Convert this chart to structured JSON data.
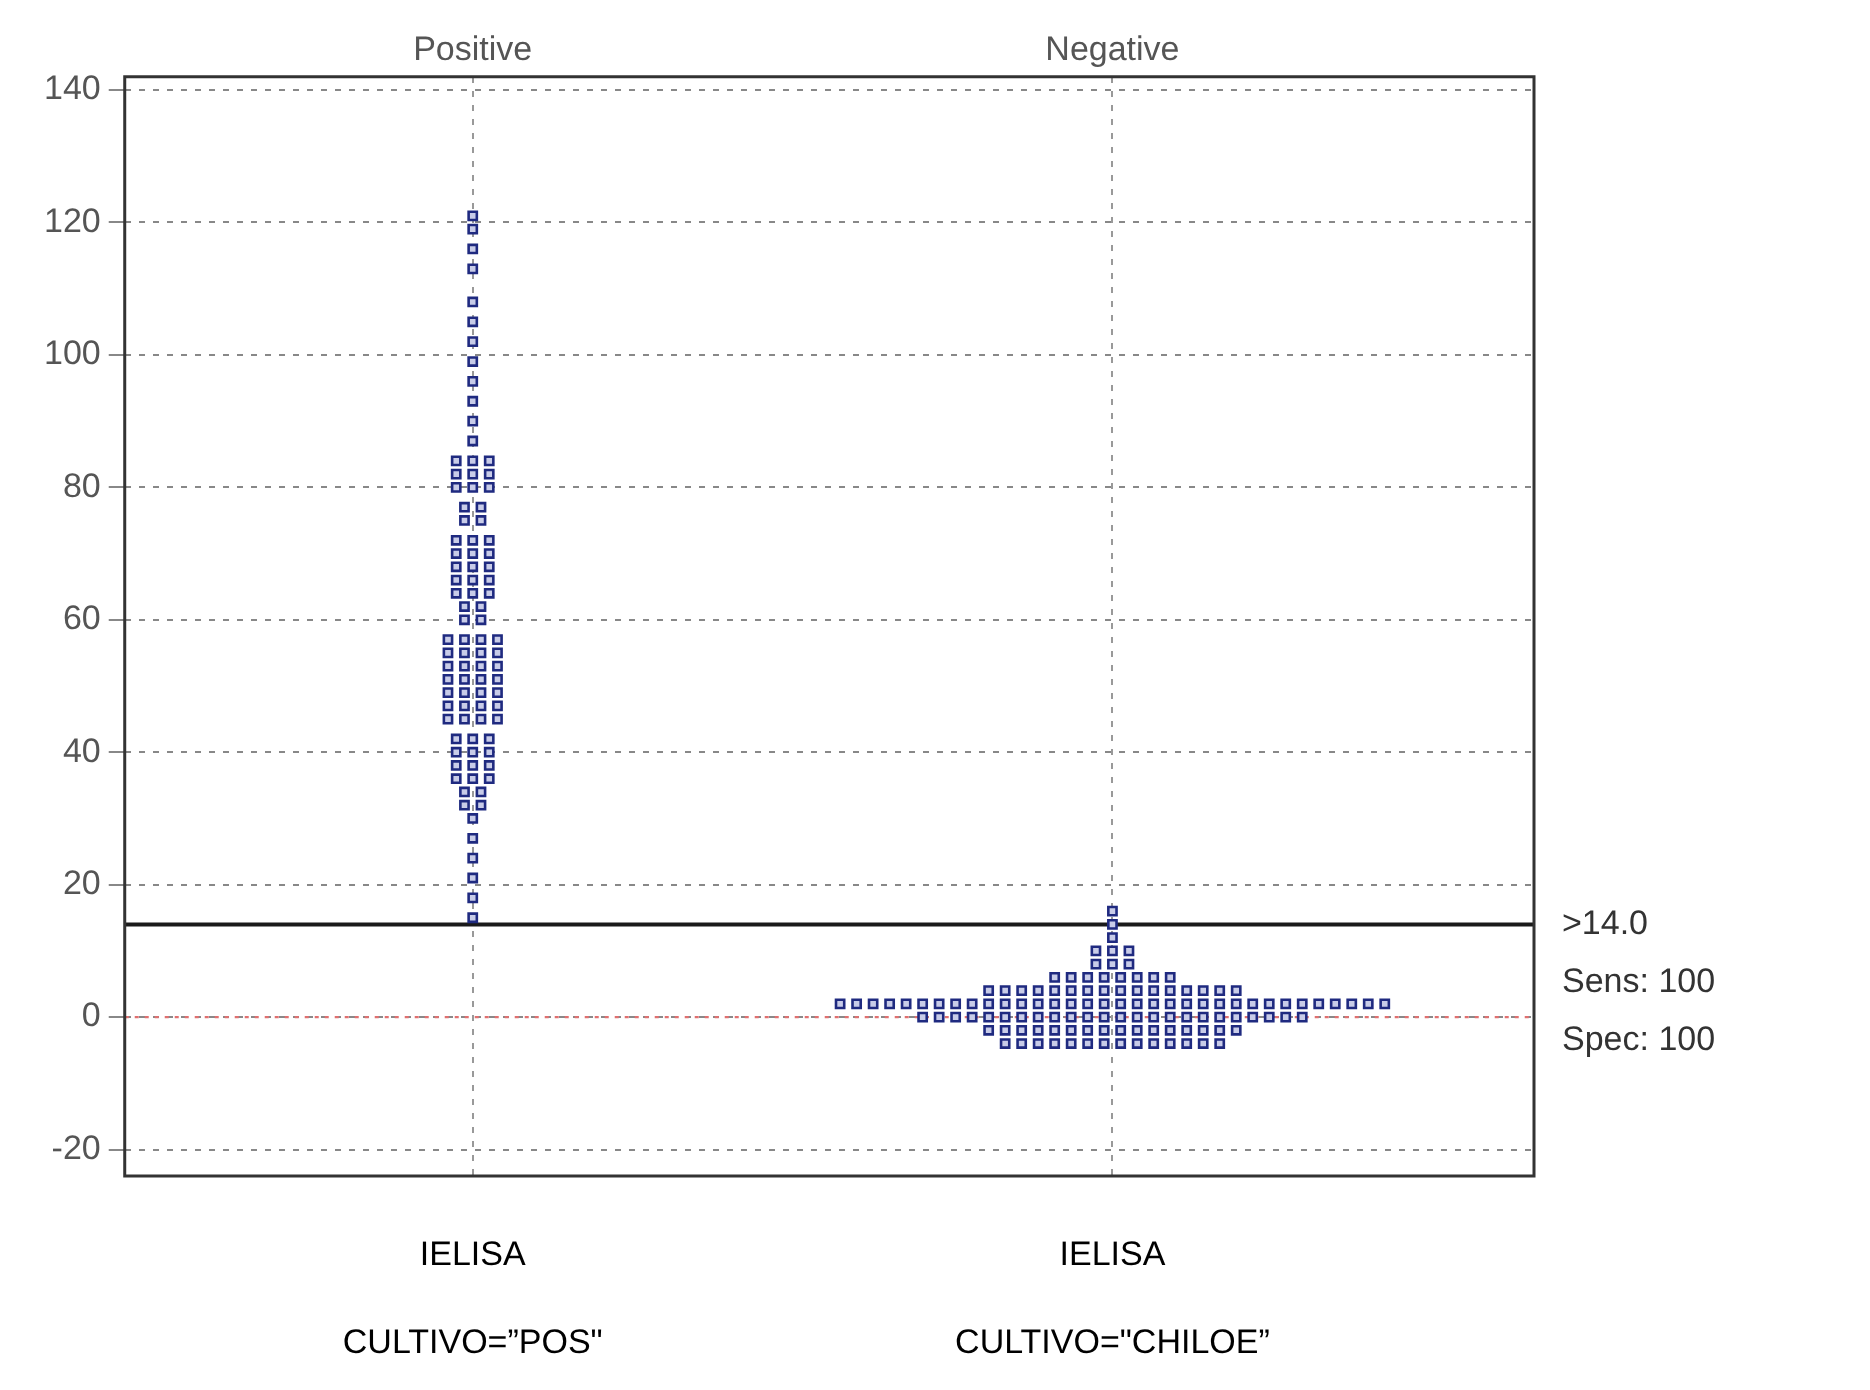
{
  "chart_data": {
    "type": "scatter",
    "categories": [
      "Positive",
      "Negative"
    ],
    "ylim": [
      -24,
      142
    ],
    "yticks": [
      -20,
      0,
      20,
      40,
      60,
      80,
      100,
      120,
      140
    ],
    "grid": true,
    "marker": "square",
    "legend": false,
    "series": [
      {
        "color": "#1f2a80",
        "x": [
          "Positive",
          "Positive",
          "Positive",
          "Positive",
          "Positive",
          "Positive",
          "Positive",
          "Positive",
          "Positive",
          "Positive",
          "Positive",
          "Positive",
          "Positive",
          "Positive",
          "Positive",
          "Positive",
          "Positive",
          "Positive",
          "Positive",
          "Positive",
          "Positive",
          "Positive",
          "Positive",
          "Positive",
          "Positive",
          "Positive",
          "Positive",
          "Positive",
          "Positive",
          "Positive",
          "Positive",
          "Positive",
          "Positive",
          "Positive",
          "Positive",
          "Positive",
          "Positive",
          "Positive",
          "Positive",
          "Positive",
          "Positive",
          "Positive",
          "Positive",
          "Positive",
          "Positive",
          "Positive",
          "Positive",
          "Positive",
          "Positive",
          "Positive",
          "Positive",
          "Positive",
          "Positive",
          "Positive",
          "Positive",
          "Positive",
          "Positive",
          "Positive",
          "Positive",
          "Positive",
          "Positive",
          "Positive",
          "Positive",
          "Positive",
          "Positive",
          "Positive",
          "Positive",
          "Positive",
          "Positive",
          "Positive",
          "Positive",
          "Positive",
          "Positive",
          "Positive",
          "Positive",
          "Positive",
          "Positive",
          "Positive",
          "Positive",
          "Positive",
          "Positive",
          "Positive",
          "Positive",
          "Positive",
          "Positive",
          "Positive",
          "Positive",
          "Positive",
          "Positive",
          "Positive",
          "Positive",
          "Positive",
          "Positive",
          "Positive"
        ],
        "values": [
          121,
          119,
          116,
          113,
          108,
          105,
          102,
          99,
          96,
          93,
          90,
          87,
          84,
          84,
          84,
          82,
          82,
          82,
          80,
          80,
          80,
          77,
          77,
          75,
          75,
          72,
          72,
          72,
          70,
          70,
          70,
          68,
          68,
          68,
          66,
          66,
          66,
          64,
          64,
          64,
          62,
          62,
          60,
          60,
          57,
          57,
          57,
          57,
          55,
          55,
          55,
          55,
          53,
          53,
          53,
          53,
          51,
          51,
          51,
          51,
          49,
          49,
          49,
          49,
          47,
          47,
          47,
          47,
          45,
          45,
          45,
          45,
          42,
          42,
          42,
          40,
          40,
          40,
          38,
          38,
          38,
          36,
          36,
          36,
          34,
          34,
          32,
          32,
          30,
          27,
          24,
          21,
          18,
          15
        ]
      },
      {
        "color": "#1f2a80",
        "x": [
          "Negative",
          "Negative",
          "Negative",
          "Negative",
          "Negative",
          "Negative",
          "Negative",
          "Negative",
          "Negative",
          "Negative",
          "Negative",
          "Negative",
          "Negative",
          "Negative",
          "Negative",
          "Negative",
          "Negative",
          "Negative",
          "Negative",
          "Negative",
          "Negative",
          "Negative",
          "Negative",
          "Negative",
          "Negative",
          "Negative",
          "Negative",
          "Negative",
          "Negative",
          "Negative",
          "Negative",
          "Negative",
          "Negative",
          "Negative",
          "Negative",
          "Negative",
          "Negative",
          "Negative",
          "Negative",
          "Negative",
          "Negative",
          "Negative",
          "Negative",
          "Negative",
          "Negative",
          "Negative",
          "Negative",
          "Negative",
          "Negative",
          "Negative",
          "Negative",
          "Negative",
          "Negative",
          "Negative",
          "Negative",
          "Negative",
          "Negative",
          "Negative",
          "Negative",
          "Negative",
          "Negative",
          "Negative",
          "Negative",
          "Negative",
          "Negative",
          "Negative",
          "Negative",
          "Negative",
          "Negative",
          "Negative",
          "Negative",
          "Negative",
          "Negative",
          "Negative",
          "Negative",
          "Negative",
          "Negative",
          "Negative",
          "Negative",
          "Negative",
          "Negative",
          "Negative",
          "Negative",
          "Negative",
          "Negative",
          "Negative",
          "Negative",
          "Negative",
          "Negative",
          "Negative",
          "Negative",
          "Negative",
          "Negative",
          "Negative",
          "Negative",
          "Negative",
          "Negative",
          "Negative",
          "Negative",
          "Negative",
          "Negative",
          "Negative",
          "Negative",
          "Negative",
          "Negative",
          "Negative",
          "Negative",
          "Negative",
          "Negative",
          "Negative",
          "Negative",
          "Negative",
          "Negative",
          "Negative",
          "Negative",
          "Negative",
          "Negative",
          "Negative",
          "Negative",
          "Negative",
          "Negative"
        ],
        "values": [
          16,
          14,
          12,
          10,
          10,
          10,
          8,
          8,
          8,
          6,
          6,
          6,
          6,
          6,
          6,
          6,
          6,
          4,
          4,
          4,
          4,
          4,
          4,
          4,
          4,
          4,
          4,
          4,
          4,
          4,
          4,
          4,
          4,
          2,
          2,
          2,
          2,
          2,
          2,
          2,
          2,
          2,
          2,
          2,
          2,
          2,
          2,
          2,
          2,
          2,
          2,
          2,
          2,
          2,
          2,
          2,
          2,
          2,
          2,
          2,
          2,
          2,
          2,
          2,
          2,
          2,
          2,
          0,
          0,
          0,
          0,
          0,
          0,
          0,
          0,
          0,
          0,
          0,
          0,
          0,
          0,
          0,
          0,
          0,
          0,
          0,
          0,
          0,
          0,
          0,
          0,
          -2,
          -2,
          -2,
          -2,
          -2,
          -2,
          -2,
          -2,
          -2,
          -2,
          -2,
          -2,
          -2,
          -2,
          -2,
          -2,
          -4,
          -4,
          -4,
          -4,
          -4,
          -4,
          -4,
          -4,
          -4,
          -4,
          -4,
          -4,
          -4,
          -4
        ]
      }
    ],
    "ref_lines": [
      {
        "axis": "y",
        "value": 14,
        "label": ">14.0",
        "color": "#1a1a1a",
        "line_style": "solid"
      },
      {
        "axis": "y",
        "value": 0,
        "color": "#e07070",
        "line_style": "dotted"
      }
    ],
    "annotations": [
      "IELISA\nCULTIVO=”POS\"",
      "IELISA\nCULTIVO=\"CHILOE”",
      "Sens: 100",
      "Spec: 100"
    ]
  }
}
